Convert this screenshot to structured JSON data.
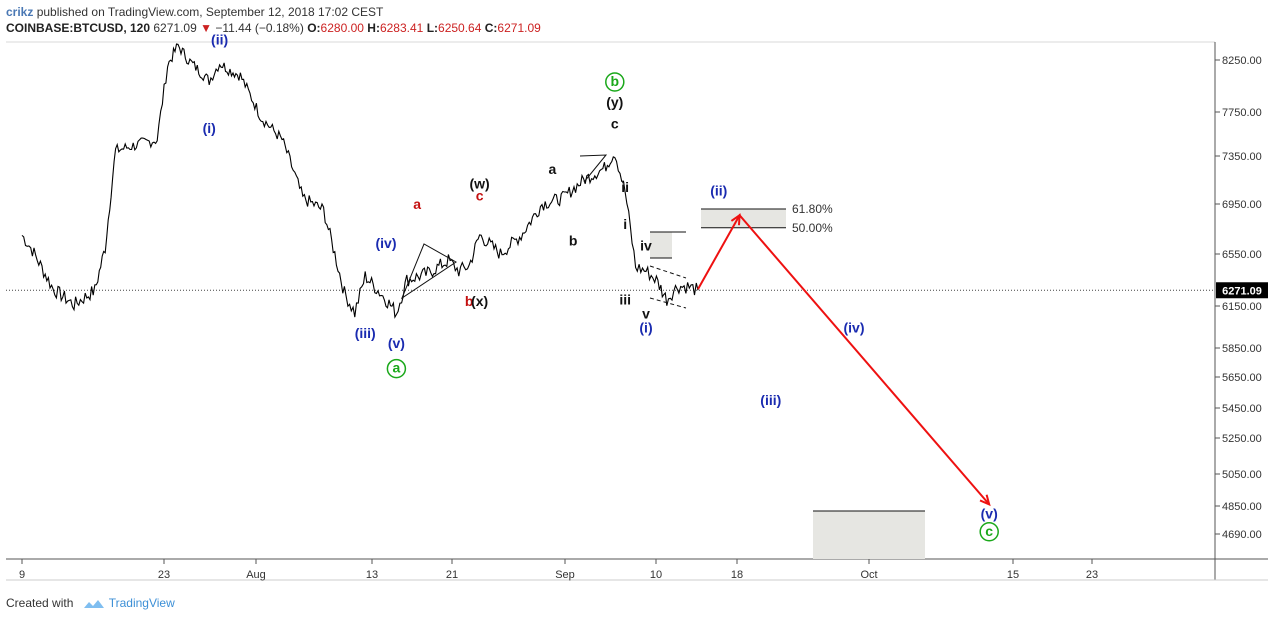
{
  "header": {
    "author": "crikz",
    "published_text": "published on TradingView.com, September 12, 2018 17:02 CEST",
    "symbol": "COINBASE:BTCUSD, 120",
    "last": "6271.09",
    "change": "−11.44 (−0.18%)",
    "open_label": "O:",
    "open": "6280.00",
    "high_label": "H:",
    "high": "6283.41",
    "low_label": "L:",
    "low": "6250.64",
    "close_label": "C:",
    "close": "6271.09"
  },
  "footer": {
    "created_with": "Created with",
    "brand": "TradingView"
  },
  "colors": {
    "blue_label": "#1a2bb0",
    "red_label": "#c41010",
    "green_label": "#1aa81a",
    "arrow": "#ee1111",
    "price_badge": "#000000",
    "candles": "#000000"
  },
  "chart_data": {
    "type": "line",
    "title": "",
    "y_ticks": [
      "8250.00",
      "7750.00",
      "7350.00",
      "6950.00",
      "6550.00",
      "6150.00",
      "5850.00",
      "5650.00",
      "5450.00",
      "5250.00",
      "5050.00",
      "4850.00",
      "4690.00"
    ],
    "x_ticks": [
      "9",
      "23",
      "Aug",
      "13",
      "21",
      "Sep",
      "10",
      "18",
      "Oct",
      "15",
      "23"
    ],
    "current_price": "6271.09",
    "price_series": {
      "x": [
        "Jul 9",
        "Jul 10",
        "Jul 12",
        "Jul 14",
        "Jul 16",
        "Jul 17",
        "Jul 18",
        "Jul 20",
        "Jul 22",
        "Jul 23",
        "Jul 24",
        "Jul 25",
        "Jul 26",
        "Jul 27",
        "Jul 28",
        "Jul 29",
        "Jul 30",
        "Aug 1",
        "Aug 3",
        "Aug 5",
        "Aug 7",
        "Aug 9",
        "Aug 10",
        "Aug 11",
        "Aug 13",
        "Aug 14",
        "Aug 15",
        "Aug 17",
        "Aug 19",
        "Aug 20",
        "Aug 21",
        "Aug 22",
        "Aug 24",
        "Aug 26",
        "Aug 28",
        "Aug 30",
        "Sep 1",
        "Sep 3",
        "Sep 4",
        "Sep 5",
        "Sep 6",
        "Sep 7",
        "Sep 8",
        "Sep 9",
        "Sep 10",
        "Sep 11",
        "Sep 12"
      ],
      "y": [
        6700,
        6580,
        6280,
        6160,
        6270,
        6600,
        7400,
        7450,
        7500,
        8200,
        8390,
        8250,
        8150,
        8050,
        8220,
        8150,
        8100,
        7700,
        7500,
        7000,
        6900,
        6250,
        6100,
        6380,
        6200,
        6100,
        6350,
        6400,
        6500,
        6420,
        6460,
        6700,
        6550,
        6700,
        6950,
        7000,
        7150,
        7250,
        7380,
        7050,
        6450,
        6420,
        6350,
        6200,
        6300,
        6300,
        6271
      ]
    },
    "wave_labels": [
      {
        "text": "(i)",
        "x": "Jul 27",
        "y": 7560,
        "color": "blue"
      },
      {
        "text": "(ii)",
        "x": "Jul 28",
        "y": 8400,
        "color": "blue"
      },
      {
        "text": "a",
        "x": "Aug 16",
        "y": 6910,
        "color": "red"
      },
      {
        "text": "(iv)",
        "x": "Aug 13",
        "y": 6600,
        "color": "blue"
      },
      {
        "text": "(iii)",
        "x": "Aug 11",
        "y": 5920,
        "color": "blue"
      },
      {
        "text": "(v)",
        "x": "Aug 14",
        "y": 5850,
        "color": "blue"
      },
      {
        "text": "a",
        "x": "Aug 14",
        "y": 5680,
        "color": "green",
        "circled": true
      },
      {
        "text": "(w)",
        "x": "Aug 22",
        "y": 7080,
        "color": "black"
      },
      {
        "text": "c",
        "x": "Aug 22",
        "y": 6980,
        "color": "red"
      },
      {
        "text": "b",
        "x": "Aug 21",
        "y": 6150,
        "color": "red"
      },
      {
        "text": "(x)",
        "x": "Aug 22",
        "y": 6150,
        "color": "black"
      },
      {
        "text": "a",
        "x": "Aug 29",
        "y": 7200,
        "color": "black"
      },
      {
        "text": "b",
        "x": "Aug 31",
        "y": 6620,
        "color": "black"
      },
      {
        "text": "b",
        "x": "Sep 4",
        "y": 8000,
        "color": "green",
        "circled": true
      },
      {
        "text": "(y)",
        "x": "Sep 4",
        "y": 7800,
        "color": "black"
      },
      {
        "text": "c",
        "x": "Sep 4",
        "y": 7600,
        "color": "black"
      },
      {
        "text": "ii",
        "x": "Sep 5",
        "y": 7050,
        "color": "black"
      },
      {
        "text": "i",
        "x": "Sep 5",
        "y": 6750,
        "color": "black"
      },
      {
        "text": "iv",
        "x": "Sep 7",
        "y": 6580,
        "color": "black"
      },
      {
        "text": "iii",
        "x": "Sep 5",
        "y": 6160,
        "color": "black"
      },
      {
        "text": "v",
        "x": "Sep 7",
        "y": 6060,
        "color": "black"
      },
      {
        "text": "(i)",
        "x": "Sep 7",
        "y": 5960,
        "color": "blue"
      },
      {
        "text": "(ii)",
        "x": "Sep 14",
        "y": 7020,
        "color": "blue"
      },
      {
        "text": "(iii)",
        "x": "Sep 19",
        "y": 5470,
        "color": "blue"
      },
      {
        "text": "(iv)",
        "x": "Sep 27",
        "y": 5960,
        "color": "blue"
      },
      {
        "text": "(v)",
        "x": "Oct 10",
        "y": 4780,
        "color": "blue"
      },
      {
        "text": "c",
        "x": "Oct 10",
        "y": 4680,
        "color": "green",
        "circled": true
      }
    ],
    "fib_levels": [
      {
        "label": "61.80%",
        "y": 6910
      },
      {
        "label": "50.00%",
        "y": 6760
      }
    ],
    "projection_path": [
      {
        "x": "Sep 12",
        "y": 6280
      },
      {
        "x": "Sep 16",
        "y": 6860
      },
      {
        "x": "Oct 10",
        "y": 4860
      }
    ]
  }
}
